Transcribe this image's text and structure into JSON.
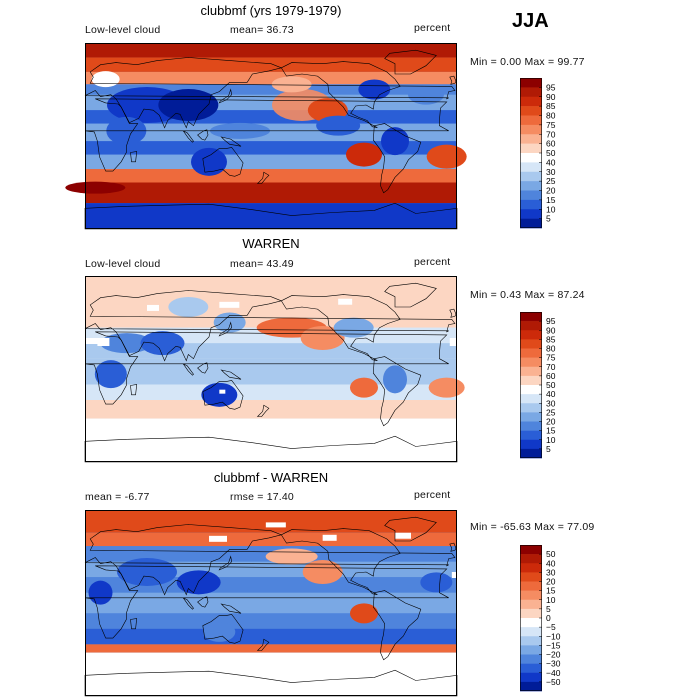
{
  "season": "JJA",
  "panels": [
    {
      "title": "clubbmf (yrs 1979-1979)",
      "left_label": "Low-level cloud",
      "mid_label": "mean=  36.73",
      "units": "percent",
      "minmax": "Min =    0.00 Max =   99.77"
    },
    {
      "title": "WARREN",
      "left_label": "Low-level cloud",
      "mid_label": "mean=  43.49",
      "units": "percent",
      "minmax": "Min =    0.43 Max =   87.24"
    },
    {
      "title": "clubbmf - WARREN",
      "left_label": "mean =   -6.77",
      "mid_label": "rmse =   17.40",
      "units": "percent",
      "minmax": "Min = -65.63 Max =   77.09"
    }
  ],
  "colorbars": {
    "abs": {
      "labels": [
        "95",
        "90",
        "85",
        "80",
        "75",
        "70",
        "60",
        "50",
        "40",
        "30",
        "25",
        "20",
        "15",
        "10",
        "5"
      ],
      "colors": [
        "#8c0000",
        "#b01a05",
        "#cc2a0a",
        "#e04a1a",
        "#ee6a3c",
        "#f58c62",
        "#fab292",
        "#fcd6c2",
        "#ffffff",
        "#d6e6f7",
        "#a9c9ee",
        "#7aa8e4",
        "#4f84dc",
        "#2a5ed6",
        "#1038c8",
        "#001c98"
      ]
    },
    "diff": {
      "labels": [
        "50",
        "40",
        "30",
        "20",
        "15",
        "10",
        "5",
        "0",
        "−5",
        "−10",
        "−15",
        "−20",
        "−30",
        "−40",
        "−50"
      ],
      "colors": [
        "#8c0000",
        "#b01a05",
        "#cc2a0a",
        "#e04a1a",
        "#ee6a3c",
        "#f58c62",
        "#fab292",
        "#fcd6c2",
        "#ffffff",
        "#d6e6f7",
        "#a9c9ee",
        "#7aa8e4",
        "#4f84dc",
        "#2a5ed6",
        "#1038c8",
        "#001c98"
      ]
    }
  },
  "chart_data": [
    {
      "type": "heatmap",
      "title": "clubbmf (yrs 1979-1979)",
      "variable": "Low-level cloud",
      "season": "JJA",
      "units": "percent",
      "mean": 36.73,
      "min": 0.0,
      "max": 99.77,
      "contour_levels": [
        5,
        10,
        15,
        20,
        25,
        30,
        40,
        50,
        60,
        70,
        75,
        80,
        85,
        90,
        95
      ]
    },
    {
      "type": "heatmap",
      "title": "WARREN",
      "variable": "Low-level cloud",
      "season": "JJA",
      "units": "percent",
      "mean": 43.49,
      "min": 0.43,
      "max": 87.24,
      "contour_levels": [
        5,
        10,
        15,
        20,
        25,
        30,
        40,
        50,
        60,
        70,
        75,
        80,
        85,
        90,
        95
      ]
    },
    {
      "type": "heatmap",
      "title": "clubbmf - WARREN",
      "season": "JJA",
      "units": "percent",
      "mean": -6.77,
      "rmse": 17.4,
      "min": -65.63,
      "max": 77.09,
      "contour_levels": [
        -50,
        -40,
        -30,
        -20,
        -15,
        -10,
        -5,
        0,
        5,
        10,
        15,
        20,
        30,
        40,
        50
      ]
    }
  ]
}
